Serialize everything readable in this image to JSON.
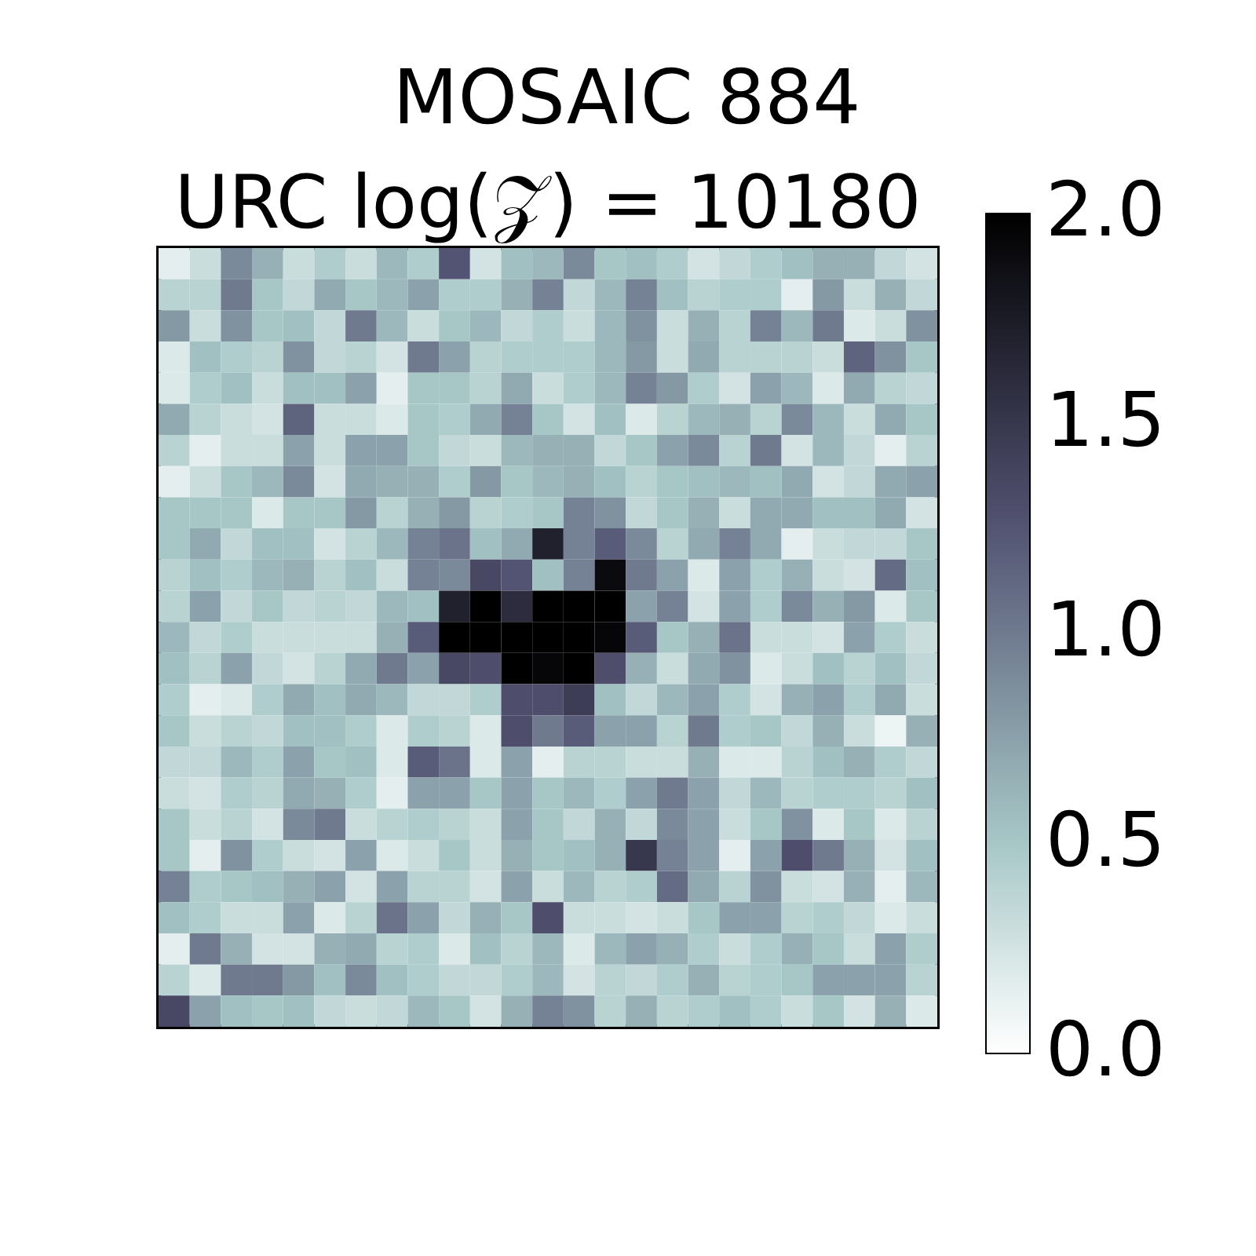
{
  "chart_data": {
    "type": "heatmap",
    "title": "MOSAIC 884",
    "subtitle": "URC log(𝒵) = 10180",
    "categories": [
      null,
      null,
      null,
      null,
      null,
      null,
      null,
      null,
      null,
      null,
      null,
      null,
      null,
      null,
      null,
      null,
      null,
      null,
      null,
      null,
      null,
      null,
      null,
      null,
      null
    ],
    "y_categories": [
      null,
      null,
      null,
      null,
      null,
      null,
      null,
      null,
      null,
      null,
      null,
      null,
      null,
      null,
      null,
      null,
      null,
      null,
      null,
      null,
      null,
      null,
      null,
      null,
      null
    ],
    "clim": [
      0,
      2
    ],
    "cticks": [
      {
        "value": 0,
        "label": "0.0"
      },
      0.5,
      {
        "value": 1,
        "label": "1.0"
      },
      1.5,
      {
        "value": 2,
        "label": "2.0"
      }
    ],
    "cells": [
      [
        0.15,
        0.3,
        0.9,
        0.65,
        0.3,
        0.45,
        0.3,
        0.6,
        0.45,
        1.25,
        0.25,
        0.55,
        0.6,
        0.9,
        0.5,
        0.55,
        0.45,
        0.25,
        0.35,
        0.45,
        0.55,
        0.65,
        0.65,
        0.35,
        0.25
      ],
      [
        0.4,
        0.4,
        1.0,
        0.5,
        0.35,
        0.7,
        0.5,
        0.6,
        0.75,
        0.45,
        0.45,
        0.65,
        0.95,
        0.35,
        0.6,
        0.95,
        0.55,
        0.4,
        0.45,
        0.45,
        0.15,
        0.8,
        0.3,
        0.65,
        0.35
      ],
      [
        0.8,
        0.3,
        0.85,
        0.5,
        0.55,
        0.35,
        1.0,
        0.6,
        0.3,
        0.5,
        0.6,
        0.35,
        0.45,
        0.3,
        0.6,
        0.85,
        0.3,
        0.65,
        0.4,
        0.95,
        0.6,
        1.0,
        0.2,
        0.3,
        0.85
      ],
      [
        0.2,
        0.55,
        0.45,
        0.4,
        0.85,
        0.35,
        0.4,
        0.25,
        1.0,
        0.75,
        0.4,
        0.45,
        0.45,
        0.45,
        0.6,
        0.8,
        0.3,
        0.7,
        0.4,
        0.4,
        0.4,
        0.3,
        1.15,
        0.85,
        0.5
      ],
      [
        0.2,
        0.45,
        0.55,
        0.3,
        0.55,
        0.55,
        0.75,
        0.15,
        0.5,
        0.5,
        0.4,
        0.7,
        0.3,
        0.45,
        0.6,
        0.95,
        0.8,
        0.45,
        0.25,
        0.75,
        0.6,
        0.2,
        0.7,
        0.4,
        0.35
      ],
      [
        0.7,
        0.4,
        0.3,
        0.25,
        1.15,
        0.3,
        0.3,
        0.2,
        0.5,
        0.45,
        0.7,
        0.95,
        0.5,
        0.25,
        0.55,
        0.2,
        0.4,
        0.6,
        0.65,
        0.4,
        0.9,
        0.6,
        0.3,
        0.7,
        0.5
      ],
      [
        0.4,
        0.15,
        0.3,
        0.3,
        0.75,
        0.3,
        0.75,
        0.75,
        0.5,
        0.35,
        0.3,
        0.6,
        0.65,
        0.65,
        0.35,
        0.5,
        0.75,
        0.9,
        0.4,
        1.0,
        0.25,
        0.6,
        0.35,
        0.15,
        0.4
      ],
      [
        0.15,
        0.3,
        0.5,
        0.6,
        0.9,
        0.25,
        0.7,
        0.65,
        0.65,
        0.45,
        0.8,
        0.5,
        0.6,
        0.65,
        0.55,
        0.4,
        0.5,
        0.55,
        0.6,
        0.55,
        0.7,
        0.25,
        0.35,
        0.7,
        0.75
      ],
      [
        0.5,
        0.5,
        0.5,
        0.2,
        0.5,
        0.5,
        0.8,
        0.4,
        0.65,
        0.8,
        0.4,
        0.45,
        0.5,
        0.95,
        0.85,
        0.35,
        0.5,
        0.65,
        0.3,
        0.7,
        0.7,
        0.55,
        0.55,
        0.7,
        0.25
      ],
      [
        0.5,
        0.7,
        0.35,
        0.55,
        0.55,
        0.25,
        0.4,
        0.6,
        0.95,
        1.05,
        0.55,
        0.7,
        1.7,
        0.95,
        1.2,
        0.9,
        0.4,
        0.7,
        0.95,
        0.7,
        0.15,
        0.3,
        0.35,
        0.35,
        0.5
      ],
      [
        0.4,
        0.55,
        0.45,
        0.6,
        0.65,
        0.4,
        0.55,
        0.3,
        0.95,
        0.9,
        1.35,
        1.25,
        0.55,
        0.95,
        1.9,
        1.0,
        0.75,
        0.2,
        0.75,
        0.45,
        0.65,
        0.3,
        0.25,
        1.1,
        0.55
      ],
      [
        0.4,
        0.75,
        0.35,
        0.5,
        0.35,
        0.4,
        0.35,
        0.6,
        0.55,
        1.7,
        2.0,
        1.6,
        2.0,
        2.0,
        2.0,
        0.75,
        0.95,
        0.25,
        0.75,
        0.45,
        0.9,
        0.65,
        0.8,
        0.2,
        0.5
      ],
      [
        0.6,
        0.35,
        0.45,
        0.3,
        0.3,
        0.3,
        0.3,
        0.65,
        1.2,
        2.0,
        2.0,
        2.0,
        2.0,
        2.0,
        1.95,
        1.2,
        0.5,
        0.65,
        1.05,
        0.3,
        0.3,
        0.25,
        0.75,
        0.45,
        0.3
      ],
      [
        0.55,
        0.4,
        0.75,
        0.35,
        0.25,
        0.4,
        0.7,
        1.0,
        0.75,
        1.35,
        1.3,
        2.0,
        1.95,
        2.0,
        1.3,
        0.65,
        0.3,
        0.7,
        0.85,
        0.2,
        0.3,
        0.55,
        0.4,
        0.55,
        0.35
      ],
      [
        0.45,
        0.15,
        0.2,
        0.45,
        0.7,
        0.55,
        0.7,
        0.6,
        0.35,
        0.35,
        0.45,
        1.3,
        1.3,
        1.45,
        0.55,
        0.35,
        0.6,
        0.75,
        0.45,
        0.25,
        0.65,
        0.75,
        0.45,
        0.7,
        0.3
      ],
      [
        0.5,
        0.3,
        0.4,
        0.35,
        0.55,
        0.55,
        0.45,
        0.2,
        0.45,
        0.4,
        0.2,
        1.3,
        1.0,
        1.2,
        0.75,
        0.75,
        0.4,
        1.0,
        0.45,
        0.5,
        0.35,
        0.65,
        0.3,
        0.1,
        0.65
      ],
      [
        0.35,
        0.35,
        0.6,
        0.45,
        0.75,
        0.5,
        0.55,
        0.2,
        1.2,
        1.05,
        0.2,
        0.75,
        0.15,
        0.4,
        0.4,
        0.3,
        0.3,
        0.65,
        0.2,
        0.2,
        0.4,
        0.55,
        0.65,
        0.45,
        0.35
      ],
      [
        0.3,
        0.25,
        0.45,
        0.4,
        0.7,
        0.65,
        0.45,
        0.15,
        0.75,
        0.75,
        0.5,
        0.75,
        0.5,
        0.6,
        0.45,
        0.75,
        1.0,
        0.75,
        0.35,
        0.6,
        0.4,
        0.45,
        0.45,
        0.4,
        0.55
      ],
      [
        0.5,
        0.3,
        0.4,
        0.25,
        0.9,
        1.0,
        0.3,
        0.4,
        0.45,
        0.4,
        0.3,
        0.75,
        0.5,
        0.35,
        0.65,
        0.35,
        0.9,
        0.75,
        0.3,
        0.5,
        0.85,
        0.2,
        0.5,
        0.2,
        0.4
      ],
      [
        0.5,
        0.15,
        0.85,
        0.45,
        0.3,
        0.25,
        0.75,
        0.2,
        0.3,
        0.5,
        0.3,
        0.65,
        0.5,
        0.55,
        0.65,
        1.5,
        0.95,
        0.75,
        0.15,
        0.75,
        1.3,
        1.0,
        0.65,
        0.25,
        0.55
      ],
      [
        0.95,
        0.45,
        0.5,
        0.55,
        0.65,
        0.75,
        0.25,
        0.75,
        0.4,
        0.4,
        0.25,
        0.75,
        0.3,
        0.6,
        0.4,
        0.45,
        1.1,
        0.7,
        0.4,
        0.85,
        0.3,
        0.25,
        0.65,
        0.15,
        0.6
      ],
      [
        0.55,
        0.45,
        0.3,
        0.3,
        0.75,
        0.2,
        0.4,
        1.05,
        0.75,
        0.35,
        0.65,
        0.5,
        1.3,
        0.3,
        0.3,
        0.25,
        0.3,
        0.5,
        0.75,
        0.75,
        0.4,
        0.45,
        0.35,
        0.2,
        0.3
      ],
      [
        0.15,
        1.0,
        0.65,
        0.25,
        0.25,
        0.65,
        0.7,
        0.4,
        0.45,
        0.2,
        0.55,
        0.4,
        0.6,
        0.2,
        0.6,
        0.75,
        0.65,
        0.45,
        0.3,
        0.45,
        0.65,
        0.5,
        0.3,
        0.75,
        0.45
      ],
      [
        0.4,
        0.2,
        1.0,
        1.0,
        0.8,
        0.55,
        0.9,
        0.55,
        0.45,
        0.35,
        0.35,
        0.45,
        0.6,
        0.25,
        0.4,
        0.35,
        0.45,
        0.65,
        0.4,
        0.45,
        0.5,
        0.75,
        0.75,
        0.75,
        0.4
      ],
      [
        1.35,
        0.75,
        0.55,
        0.5,
        0.55,
        0.35,
        0.3,
        0.35,
        0.6,
        0.5,
        0.25,
        0.65,
        0.95,
        0.85,
        0.4,
        0.65,
        0.4,
        0.45,
        0.55,
        0.45,
        0.3,
        0.5,
        0.25,
        0.65,
        0.2
      ]
    ]
  }
}
